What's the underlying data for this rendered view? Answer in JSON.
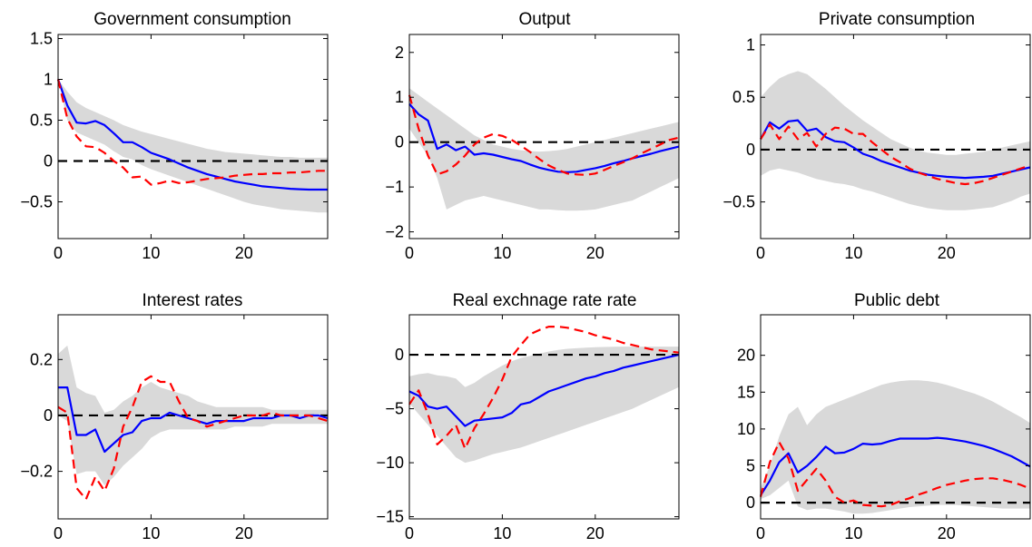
{
  "colors": {
    "band": "#d9d9d9",
    "solid_line": "#0000ff",
    "dashed_line": "#ff0000",
    "zero_line": "#000000",
    "axes": "#000000"
  },
  "chart_data": [
    {
      "type": "line",
      "title": "Government consumption",
      "xlim": [
        0,
        29
      ],
      "ylim": [
        -0.95,
        1.55
      ],
      "xticks": [
        0,
        10,
        20
      ],
      "xtick_labels": [
        "0",
        "10",
        "20"
      ],
      "yticks": [
        -0.5,
        0,
        0.5,
        1,
        1.5
      ],
      "ytick_labels": [
        "−0.5",
        "0",
        "0.5",
        "1",
        "1.5"
      ],
      "zero_line": true,
      "x": [
        0,
        1,
        2,
        3,
        4,
        5,
        6,
        7,
        8,
        9,
        10,
        11,
        12,
        13,
        14,
        15,
        16,
        17,
        18,
        19,
        20,
        21,
        22,
        23,
        24,
        25,
        26,
        27,
        28,
        29
      ],
      "band_upper": [
        1.0,
        0.85,
        0.72,
        0.65,
        0.6,
        0.55,
        0.5,
        0.44,
        0.4,
        0.36,
        0.33,
        0.3,
        0.27,
        0.24,
        0.21,
        0.18,
        0.15,
        0.13,
        0.11,
        0.1,
        0.09,
        0.08,
        0.07,
        0.06,
        0.05,
        0.05,
        0.04,
        0.04,
        0.04,
        0.04
      ],
      "band_lower": [
        1.0,
        0.5,
        0.35,
        0.3,
        0.25,
        0.2,
        0.12,
        0.05,
        0.02,
        -0.05,
        -0.1,
        -0.14,
        -0.18,
        -0.22,
        -0.26,
        -0.3,
        -0.34,
        -0.38,
        -0.42,
        -0.46,
        -0.5,
        -0.53,
        -0.55,
        -0.57,
        -0.59,
        -0.6,
        -0.61,
        -0.62,
        -0.63,
        -0.63
      ],
      "series": [
        {
          "style": "solid",
          "values": [
            1.0,
            0.68,
            0.47,
            0.46,
            0.49,
            0.44,
            0.34,
            0.23,
            0.23,
            0.17,
            0.1,
            0.06,
            0.02,
            -0.03,
            -0.08,
            -0.12,
            -0.16,
            -0.19,
            -0.22,
            -0.25,
            -0.27,
            -0.29,
            -0.31,
            -0.32,
            -0.33,
            -0.34,
            -0.345,
            -0.35,
            -0.35,
            -0.35
          ]
        },
        {
          "style": "dashed",
          "values": [
            1.0,
            0.52,
            0.3,
            0.18,
            0.17,
            0.1,
            0.0,
            -0.08,
            -0.2,
            -0.19,
            -0.29,
            -0.27,
            -0.24,
            -0.27,
            -0.26,
            -0.24,
            -0.22,
            -0.21,
            -0.2,
            -0.18,
            -0.17,
            -0.16,
            -0.16,
            -0.15,
            -0.15,
            -0.14,
            -0.14,
            -0.13,
            -0.12,
            -0.12
          ]
        }
      ]
    },
    {
      "type": "line",
      "title": "Output",
      "xlim": [
        0,
        29
      ],
      "ylim": [
        -2.15,
        2.4
      ],
      "xticks": [
        0,
        10,
        20
      ],
      "xtick_labels": [
        "0",
        "10",
        "20"
      ],
      "yticks": [
        -2,
        -1,
        0,
        1,
        2
      ],
      "ytick_labels": [
        "−2",
        "−1",
        "0",
        "1",
        "2"
      ],
      "zero_line": true,
      "x": [
        0,
        1,
        2,
        3,
        4,
        5,
        6,
        7,
        8,
        9,
        10,
        11,
        12,
        13,
        14,
        15,
        16,
        17,
        18,
        19,
        20,
        21,
        22,
        23,
        24,
        25,
        26,
        27,
        28,
        29
      ],
      "band_upper": [
        1.2,
        1.05,
        0.9,
        0.75,
        0.6,
        0.45,
        0.3,
        0.15,
        0.05,
        -0.05,
        -0.1,
        -0.15,
        -0.18,
        -0.2,
        -0.21,
        -0.2,
        -0.18,
        -0.15,
        -0.1,
        -0.05,
        0.0,
        0.05,
        0.1,
        0.15,
        0.2,
        0.25,
        0.3,
        0.35,
        0.4,
        0.45
      ],
      "band_lower": [
        0.3,
        0.0,
        -0.3,
        -0.8,
        -1.5,
        -1.4,
        -1.3,
        -1.25,
        -1.2,
        -1.25,
        -1.3,
        -1.35,
        -1.4,
        -1.45,
        -1.5,
        -1.5,
        -1.52,
        -1.53,
        -1.53,
        -1.52,
        -1.5,
        -1.45,
        -1.4,
        -1.35,
        -1.3,
        -1.2,
        -1.1,
        -1.0,
        -0.9,
        -0.8
      ],
      "series": [
        {
          "style": "solid",
          "values": [
            0.85,
            0.62,
            0.48,
            -0.15,
            -0.05,
            -0.18,
            -0.1,
            -0.28,
            -0.25,
            -0.28,
            -0.33,
            -0.38,
            -0.42,
            -0.5,
            -0.57,
            -0.62,
            -0.66,
            -0.67,
            -0.66,
            -0.62,
            -0.58,
            -0.53,
            -0.47,
            -0.42,
            -0.36,
            -0.31,
            -0.26,
            -0.2,
            -0.15,
            -0.1
          ]
        },
        {
          "style": "dashed",
          "values": [
            1.05,
            0.3,
            -0.3,
            -0.72,
            -0.65,
            -0.5,
            -0.3,
            -0.05,
            0.1,
            0.18,
            0.14,
            0.05,
            -0.08,
            -0.22,
            -0.38,
            -0.52,
            -0.62,
            -0.7,
            -0.72,
            -0.73,
            -0.7,
            -0.62,
            -0.53,
            -0.45,
            -0.36,
            -0.25,
            -0.15,
            -0.05,
            0.05,
            0.1
          ]
        }
      ]
    },
    {
      "type": "line",
      "title": "Private consumption",
      "xlim": [
        0,
        29
      ],
      "ylim": [
        -0.85,
        1.1
      ],
      "xticks": [
        0,
        10,
        20
      ],
      "xtick_labels": [
        "0",
        "10",
        "20"
      ],
      "yticks": [
        -0.5,
        0,
        0.5,
        1
      ],
      "ytick_labels": [
        "−0.5",
        "0",
        "0.5",
        "1"
      ],
      "zero_line": true,
      "x": [
        0,
        1,
        2,
        3,
        4,
        5,
        6,
        7,
        8,
        9,
        10,
        11,
        12,
        13,
        14,
        15,
        16,
        17,
        18,
        19,
        20,
        21,
        22,
        23,
        24,
        25,
        26,
        27,
        28,
        29
      ],
      "band_upper": [
        0.5,
        0.6,
        0.68,
        0.72,
        0.75,
        0.72,
        0.65,
        0.58,
        0.5,
        0.42,
        0.35,
        0.28,
        0.22,
        0.16,
        0.1,
        0.06,
        0.02,
        -0.01,
        -0.03,
        -0.04,
        -0.05,
        -0.05,
        -0.04,
        -0.03,
        -0.02,
        0.0,
        0.02,
        0.04,
        0.06,
        0.08
      ],
      "band_lower": [
        -0.25,
        -0.2,
        -0.18,
        -0.2,
        -0.22,
        -0.25,
        -0.28,
        -0.3,
        -0.32,
        -0.33,
        -0.35,
        -0.38,
        -0.4,
        -0.43,
        -0.46,
        -0.49,
        -0.52,
        -0.54,
        -0.56,
        -0.57,
        -0.58,
        -0.58,
        -0.58,
        -0.57,
        -0.56,
        -0.55,
        -0.52,
        -0.49,
        -0.45,
        -0.42
      ],
      "series": [
        {
          "style": "solid",
          "values": [
            0.1,
            0.26,
            0.2,
            0.27,
            0.28,
            0.18,
            0.2,
            0.12,
            0.08,
            0.07,
            0.02,
            -0.04,
            -0.07,
            -0.11,
            -0.14,
            -0.17,
            -0.2,
            -0.22,
            -0.24,
            -0.25,
            -0.26,
            -0.265,
            -0.27,
            -0.265,
            -0.26,
            -0.25,
            -0.23,
            -0.21,
            -0.19,
            -0.17
          ]
        },
        {
          "style": "dashed",
          "values": [
            0.1,
            0.24,
            0.1,
            0.22,
            0.1,
            0.16,
            0.03,
            0.15,
            0.21,
            0.2,
            0.15,
            0.15,
            0.07,
            0.0,
            -0.07,
            -0.12,
            -0.18,
            -0.22,
            -0.25,
            -0.28,
            -0.3,
            -0.32,
            -0.33,
            -0.32,
            -0.3,
            -0.27,
            -0.24,
            -0.21,
            -0.18,
            -0.15
          ]
        }
      ]
    },
    {
      "type": "line",
      "title": "Interest rates",
      "xlim": [
        0,
        29
      ],
      "ylim": [
        -0.37,
        0.36
      ],
      "xticks": [
        0,
        10,
        20
      ],
      "xtick_labels": [
        "0",
        "10",
        "20"
      ],
      "yticks": [
        -0.2,
        0,
        0.2
      ],
      "ytick_labels": [
        "−0.2",
        "0",
        "0.2"
      ],
      "zero_line": true,
      "x": [
        0,
        1,
        2,
        3,
        4,
        5,
        6,
        7,
        8,
        9,
        10,
        11,
        12,
        13,
        14,
        15,
        16,
        17,
        18,
        19,
        20,
        21,
        22,
        23,
        24,
        25,
        26,
        27,
        28,
        29
      ],
      "band_upper": [
        0.22,
        0.25,
        0.1,
        0.08,
        0.07,
        0.01,
        0.02,
        0.05,
        0.07,
        0.1,
        0.12,
        0.1,
        0.09,
        0.08,
        0.07,
        0.05,
        0.04,
        0.03,
        0.03,
        0.03,
        0.03,
        0.03,
        0.03,
        0.02,
        0.02,
        0.02,
        0.02,
        0.02,
        0.02,
        0.02
      ],
      "band_lower": [
        0.0,
        -0.02,
        -0.21,
        -0.2,
        -0.2,
        -0.25,
        -0.22,
        -0.18,
        -0.15,
        -0.12,
        -0.08,
        -0.06,
        -0.05,
        -0.05,
        -0.05,
        -0.05,
        -0.05,
        -0.05,
        -0.05,
        -0.04,
        -0.04,
        -0.04,
        -0.04,
        -0.03,
        -0.03,
        -0.03,
        -0.03,
        -0.03,
        -0.03,
        -0.03
      ],
      "series": [
        {
          "style": "solid",
          "values": [
            0.1,
            0.1,
            -0.07,
            -0.07,
            -0.05,
            -0.13,
            -0.1,
            -0.07,
            -0.06,
            -0.02,
            -0.01,
            -0.01,
            0.01,
            0.0,
            -0.01,
            -0.02,
            -0.03,
            -0.02,
            -0.02,
            -0.02,
            -0.02,
            -0.01,
            -0.01,
            -0.01,
            0.0,
            0.0,
            -0.01,
            0.0,
            0.0,
            -0.01
          ]
        },
        {
          "style": "dashed",
          "values": [
            0.03,
            0.01,
            -0.26,
            -0.3,
            -0.22,
            -0.27,
            -0.19,
            -0.04,
            0.03,
            0.12,
            0.14,
            0.12,
            0.12,
            0.05,
            -0.01,
            -0.02,
            -0.04,
            -0.03,
            -0.02,
            -0.01,
            0.0,
            0.0,
            0.0,
            0.01,
            0.0,
            0.0,
            0.0,
            0.0,
            -0.01,
            -0.02
          ]
        }
      ]
    },
    {
      "type": "line",
      "title": "Real exchnage rate rate",
      "xlim": [
        0,
        29
      ],
      "ylim": [
        -15.2,
        3.7
      ],
      "xticks": [
        0,
        10,
        20
      ],
      "xtick_labels": [
        "0",
        "10",
        "20"
      ],
      "yticks": [
        -15,
        -10,
        -5,
        0
      ],
      "ytick_labels": [
        "−15",
        "−10",
        "−5",
        "0"
      ],
      "zero_line": true,
      "x": [
        0,
        1,
        2,
        3,
        4,
        5,
        6,
        7,
        8,
        9,
        10,
        11,
        12,
        13,
        14,
        15,
        16,
        17,
        18,
        19,
        20,
        21,
        22,
        23,
        24,
        25,
        26,
        27,
        28,
        29
      ],
      "band_upper": [
        -2.0,
        -1.8,
        -1.7,
        -1.9,
        -2.0,
        -2.2,
        -3.0,
        -2.6,
        -2.0,
        -1.5,
        -1.0,
        -0.6,
        -0.3,
        -0.1,
        0.1,
        0.3,
        0.45,
        0.55,
        0.6,
        0.65,
        0.7,
        0.72,
        0.74,
        0.75,
        0.75,
        0.75,
        0.75,
        0.75,
        0.75,
        0.75
      ],
      "band_lower": [
        -4.5,
        -5.5,
        -6.5,
        -7.5,
        -8.5,
        -9.5,
        -10.0,
        -9.8,
        -9.5,
        -9.2,
        -9.0,
        -8.8,
        -8.6,
        -8.3,
        -8.0,
        -7.7,
        -7.4,
        -7.1,
        -6.8,
        -6.5,
        -6.2,
        -5.9,
        -5.6,
        -5.3,
        -5.0,
        -4.6,
        -4.2,
        -3.8,
        -3.4,
        -3.0
      ],
      "series": [
        {
          "style": "solid",
          "values": [
            -3.4,
            -3.8,
            -4.8,
            -5.0,
            -4.8,
            -5.7,
            -6.6,
            -6.1,
            -6.0,
            -5.9,
            -5.8,
            -5.4,
            -4.6,
            -4.4,
            -3.9,
            -3.4,
            -3.1,
            -2.8,
            -2.5,
            -2.2,
            -2.0,
            -1.7,
            -1.5,
            -1.2,
            -1.0,
            -0.8,
            -0.6,
            -0.4,
            -0.2,
            0.0
          ]
        },
        {
          "style": "dashed",
          "values": [
            -4.6,
            -3.3,
            -5.5,
            -8.3,
            -7.5,
            -6.5,
            -8.7,
            -6.8,
            -5.5,
            -4.0,
            -2.3,
            -0.2,
            0.9,
            1.9,
            2.3,
            2.6,
            2.6,
            2.5,
            2.3,
            2.1,
            1.8,
            1.6,
            1.4,
            1.1,
            0.9,
            0.7,
            0.5,
            0.4,
            0.3,
            0.2
          ]
        }
      ]
    },
    {
      "type": "line",
      "title": "Public debt",
      "xlim": [
        0,
        29
      ],
      "ylim": [
        -2.2,
        25.5
      ],
      "xticks": [
        0,
        10,
        20
      ],
      "xtick_labels": [
        "0",
        "10",
        "20"
      ],
      "yticks": [
        0,
        5,
        10,
        15,
        20
      ],
      "ytick_labels": [
        "0",
        "5",
        "10",
        "15",
        "20"
      ],
      "zero_line": true,
      "x": [
        0,
        1,
        2,
        3,
        4,
        5,
        6,
        7,
        8,
        9,
        10,
        11,
        12,
        13,
        14,
        15,
        16,
        17,
        18,
        19,
        20,
        21,
        22,
        23,
        24,
        25,
        26,
        27,
        28,
        29
      ],
      "band_upper": [
        2.0,
        5.0,
        9.0,
        12.0,
        13.0,
        10.5,
        12.0,
        13.0,
        13.5,
        14.0,
        14.5,
        15.0,
        15.5,
        16.0,
        16.3,
        16.5,
        16.6,
        16.6,
        16.5,
        16.3,
        16.0,
        15.6,
        15.2,
        14.8,
        14.3,
        13.7,
        13.0,
        12.3,
        11.6,
        10.8
      ],
      "band_lower": [
        0.5,
        1.0,
        2.0,
        3.0,
        -0.5,
        -1.0,
        -0.8,
        -0.8,
        -1.0,
        -1.2,
        -1.5,
        -1.5,
        -1.4,
        -1.2,
        -1.0,
        -0.8,
        -0.6,
        -0.5,
        -0.4,
        -0.3,
        -0.3,
        -0.3,
        -0.4,
        -0.5,
        -0.6,
        -0.7,
        -0.8,
        -0.8,
        -0.8,
        -0.8
      ],
      "series": [
        {
          "style": "solid",
          "values": [
            1.0,
            3.0,
            5.5,
            6.7,
            4.1,
            5.0,
            6.2,
            7.6,
            6.7,
            6.8,
            7.3,
            8.0,
            7.9,
            8.0,
            8.4,
            8.7,
            8.7,
            8.7,
            8.7,
            8.8,
            8.7,
            8.5,
            8.3,
            8.0,
            7.7,
            7.3,
            6.8,
            6.3,
            5.6,
            4.9
          ]
        },
        {
          "style": "dashed",
          "values": [
            0.8,
            5.5,
            8.2,
            6.0,
            1.6,
            3.1,
            4.6,
            3.0,
            0.8,
            0.0,
            0.3,
            -0.3,
            -0.4,
            -0.5,
            -0.3,
            0.2,
            0.6,
            1.1,
            1.5,
            2.0,
            2.4,
            2.7,
            3.0,
            3.2,
            3.3,
            3.3,
            3.1,
            2.8,
            2.4,
            1.9
          ]
        }
      ]
    }
  ]
}
